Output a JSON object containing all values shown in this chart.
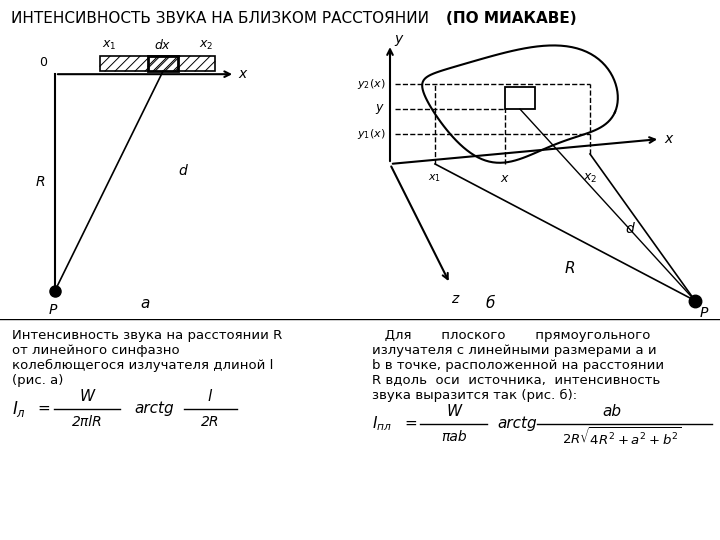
{
  "title_normal": "ИНТЕНСИВНОСТЬ ЗВУКА НА БЛИЗКОМ РАССТОЯНИИ ",
  "title_bold": "(ПО МИАКАВЕ)",
  "bg_color_top": "#c8c8c8",
  "bg_color_bottom": "#ffffff",
  "text_left_1": "Интенсивность звука на расстоянии R",
  "text_left_2": "от линейного синфазно",
  "text_left_3": "колеблющегося излучателя длиной l",
  "text_left_4": "(рис. a)",
  "text_right_1": "   Для       плоского       прямоугольного",
  "text_right_2": "излучателя с линейными размерами a и",
  "text_right_3": "b в точке, расположенной на расстоянии",
  "text_right_4": "R вдоль  оси  источника,  интенсивность",
  "text_right_5": "звука выразится так (рис. б):",
  "label_a": "а",
  "label_b": "б"
}
